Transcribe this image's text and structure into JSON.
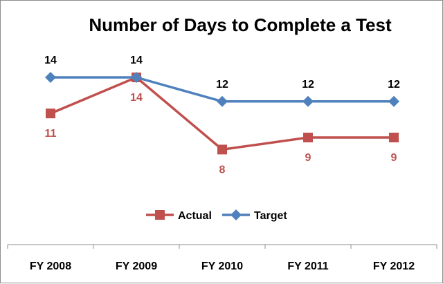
{
  "chart_data": {
    "type": "line",
    "title": "Number of Days to Complete a Test",
    "categories": [
      "FY 2008",
      "FY 2009",
      "FY 2010",
      "FY 2011",
      "FY 2012"
    ],
    "series": [
      {
        "name": "Actual",
        "values": [
          11,
          14,
          8,
          9,
          9
        ],
        "color": "#C0504D",
        "marker": "square"
      },
      {
        "name": "Target",
        "values": [
          14,
          14,
          12,
          12,
          12
        ],
        "color": "#4F81BD",
        "marker": "diamond"
      }
    ],
    "xlabel": "",
    "ylabel": "",
    "grid": false,
    "legend": "bottom-center",
    "data_labels": true
  }
}
